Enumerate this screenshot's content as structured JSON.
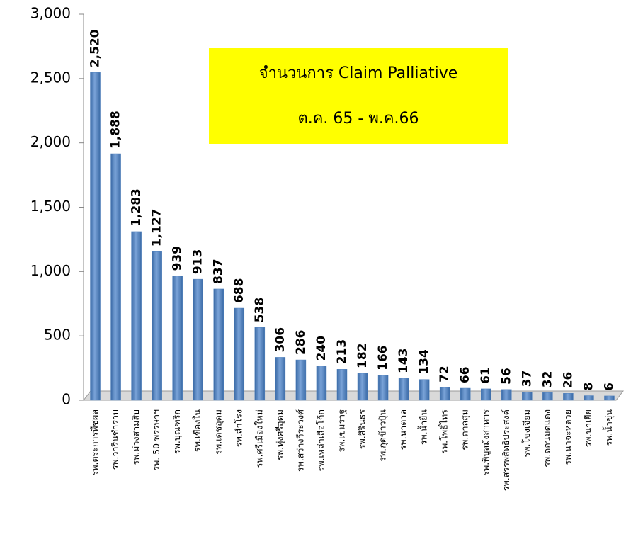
{
  "chart_data": {
    "type": "bar",
    "title": "จำนวนการ  Claim Palliative",
    "subtitle": "ต.ค. 65 - พ.ค.66",
    "categories": [
      "รพ.ตระการพืชผล",
      "รพ.วารินชำราบ",
      "รพ.ม่วงสามสิบ",
      "รพ. 50 พรรษาฯ",
      "รพ.บุณฑริก",
      "รพ.เขื่องใน",
      "รพ.เดชอุดม",
      "รพ.สำโรง",
      "รพ.ศรีเมืองใหม่",
      "รพ.ทุ่งศรีอุดม",
      "รพ.สว่างวีระวงศ์",
      "รพ.เหล่าเสือโก้ก",
      "รพ.เขมราฐ",
      "รพ.สิรินธร",
      "รพ.กุดข้าวปุ้น",
      "รพ.นาตาล",
      "รพ.น้ำยืน",
      "รพ.โพธิ์ไทร",
      "รพ.ตาลสุม",
      "รพ.พิบูลมังสาหาร",
      "รพ.สรรพสิทธิประสงค์",
      "รพ.โขงเจียม",
      "รพ.ดอนมดแดง",
      "รพ.นาจะหลวย",
      "รพ.นาเยีย",
      "รพ.น้ำขุ่น"
    ],
    "values": [
      2520,
      1888,
      1283,
      1127,
      939,
      913,
      837,
      688,
      538,
      306,
      286,
      240,
      213,
      182,
      166,
      143,
      134,
      72,
      66,
      61,
      56,
      37,
      32,
      26,
      8,
      6
    ],
    "value_labels": [
      "2,520",
      "1,888",
      "1,283",
      "1,127",
      "939",
      "913",
      "837",
      "688",
      "538",
      "306",
      "286",
      "240",
      "213",
      "182",
      "166",
      "143",
      "134",
      "72",
      "66",
      "61",
      "56",
      "37",
      "32",
      "26",
      "8",
      "6"
    ],
    "color": "#4f81bd",
    "ylim": [
      0,
      3000
    ],
    "yticks": [
      0,
      500,
      {
        "value": 1000,
        "label": "1,000"
      },
      {
        "value": 1500,
        "label": "1,500"
      },
      {
        "value": 2000,
        "label": "2,000"
      },
      {
        "value": 2500,
        "label": "2,500"
      },
      {
        "value": 3000,
        "label": "3,000"
      }
    ],
    "grid": false
  }
}
